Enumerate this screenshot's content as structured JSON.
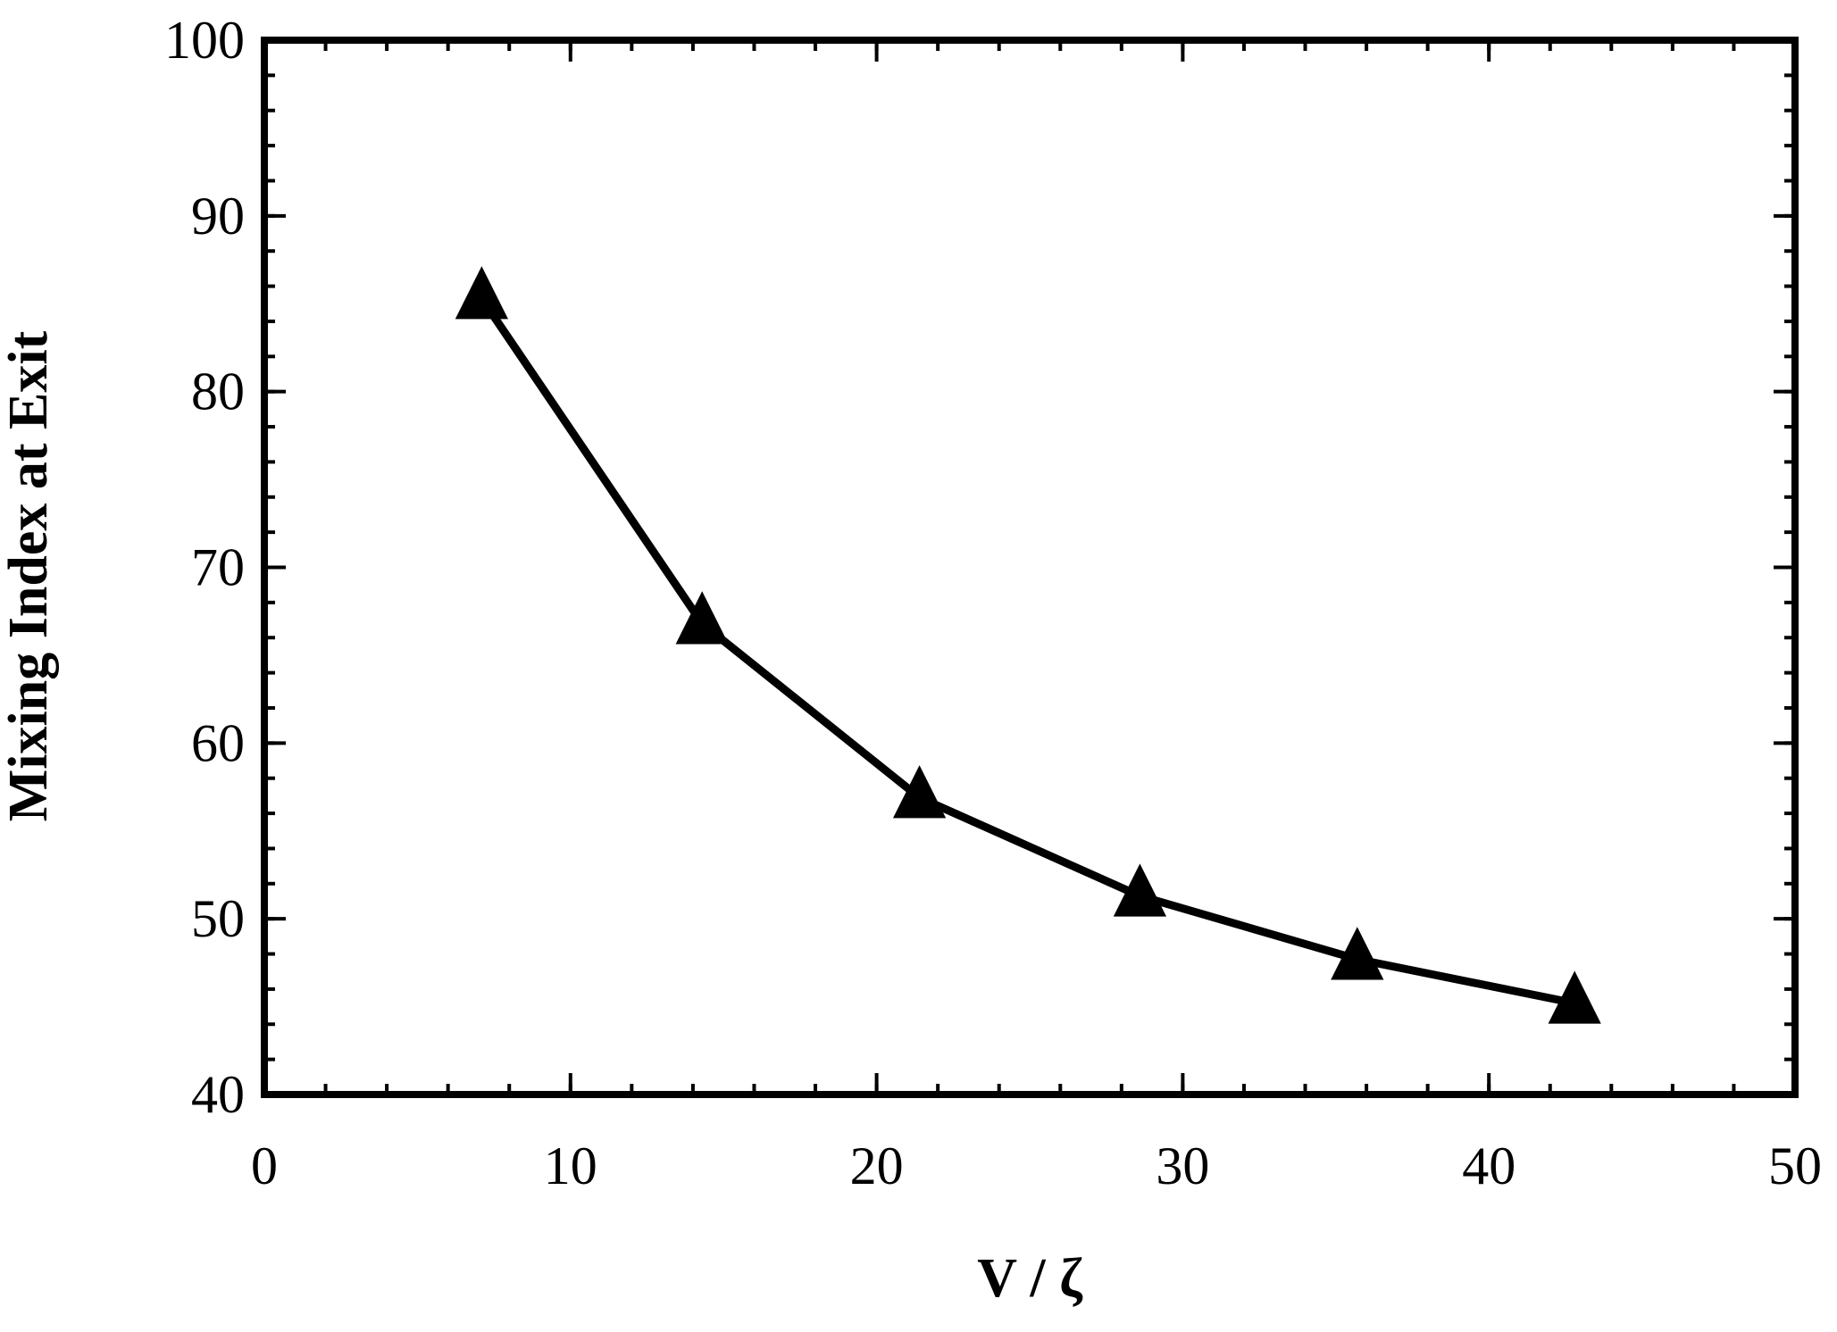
{
  "chart_data": {
    "type": "line",
    "title": "",
    "xlabel": "V / ζ",
    "ylabel": "Mixing Index at Exit",
    "xlim": [
      0,
      50
    ],
    "ylim": [
      40,
      100
    ],
    "xticks": [
      0,
      10,
      20,
      30,
      40,
      50
    ],
    "yticks": [
      40,
      50,
      60,
      70,
      80,
      90,
      100
    ],
    "xtick_labels": [
      "0",
      "10",
      "20",
      "30",
      "40",
      "50"
    ],
    "ytick_labels": [
      "40",
      "50",
      "60",
      "70",
      "80",
      "90",
      "100"
    ],
    "grid": false,
    "marker": "triangle",
    "line_color": "#000000",
    "series": [
      {
        "x": [
          7.1,
          14.3,
          21.4,
          28.6,
          35.7,
          42.8
        ],
        "values": [
          85.3,
          66.8,
          56.9,
          51.3,
          47.7,
          45.2
        ]
      }
    ]
  }
}
